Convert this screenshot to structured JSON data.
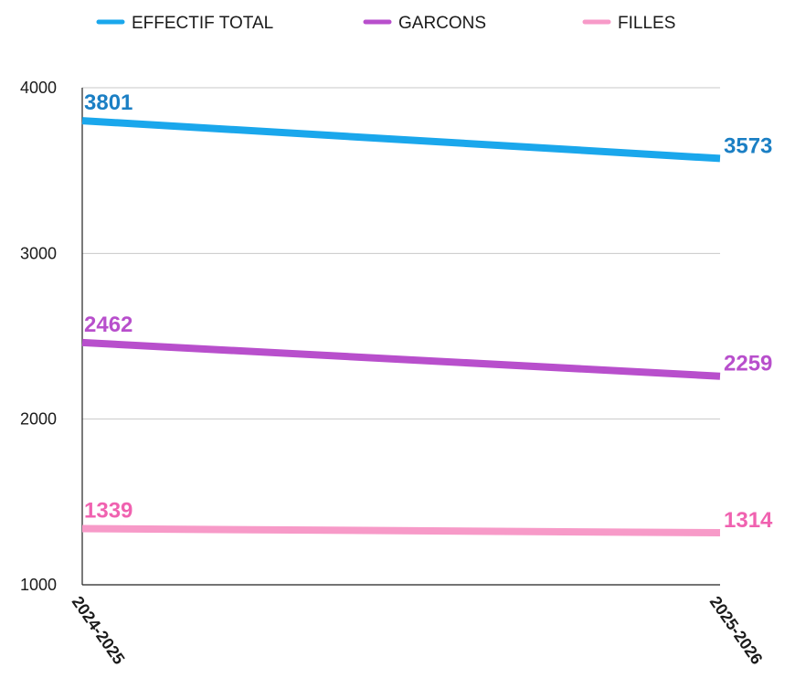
{
  "chart_data": {
    "type": "line",
    "categories": [
      "2024-2025",
      "2025-2026"
    ],
    "series": [
      {
        "name": "EFFECTIF TOTAL",
        "values": [
          3801,
          3573
        ],
        "color": "#1aa7ec",
        "label_color": "#1b7fc4"
      },
      {
        "name": "GARCONS",
        "values": [
          2462,
          2259
        ],
        "color": "#b84fcc",
        "label_color": "#b84fcc"
      },
      {
        "name": "FILLES",
        "values": [
          1339,
          1314
        ],
        "color": "#f79ac8",
        "label_color": "#f062b0"
      }
    ],
    "ylim": [
      1000,
      4000
    ],
    "yticks": [
      1000,
      2000,
      3000,
      4000
    ],
    "grid": true,
    "legend": "top"
  }
}
